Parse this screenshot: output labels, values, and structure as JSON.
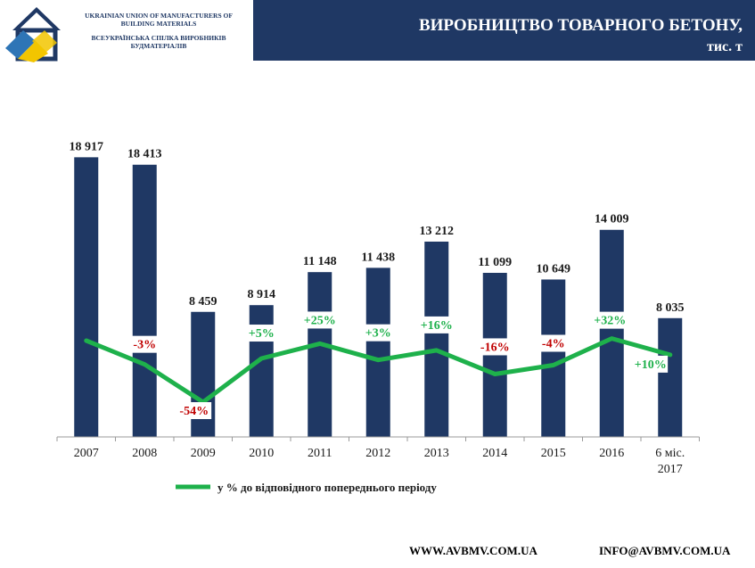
{
  "header": {
    "org_en": "UKRAINIAN UNION OF MANUFACTURERS OF BUILDING MATERIALS",
    "org_ua": "ВСЕУКРАЇНСЬКА СПІЛКА ВИРОБНИКІВ БУДМАТЕРІАЛІВ",
    "title_line1": "ВИРОБНИЦТВО ТОВАРНОГО БЕТОНУ,",
    "title_line2": "тис. т"
  },
  "colors": {
    "banner": "#1f3864",
    "bar": "#1f3864",
    "line": "#1eb14b",
    "negative_label": "#c00000",
    "positive_label": "#1eb14b"
  },
  "chart_data": {
    "type": "bar",
    "categories": [
      "2007",
      "2008",
      "2009",
      "2010",
      "2011",
      "2012",
      "2013",
      "2014",
      "2015",
      "2016",
      "6 міс. 2017"
    ],
    "series": [
      {
        "type": "bar",
        "values": [
          18917,
          18413,
          8459,
          8914,
          11148,
          11438,
          13212,
          11099,
          10649,
          14009,
          8035
        ],
        "labels": [
          "18 917",
          "18 413",
          "8 459",
          "8 914",
          "11 148",
          "11 438",
          "13 212",
          "11 099",
          "10 649",
          "14 009",
          "8 035"
        ]
      },
      {
        "type": "line",
        "name": "у % до відповідного попереднього періоду",
        "values": [
          null,
          -3,
          -54,
          5,
          25,
          3,
          16,
          -16,
          -4,
          32,
          10
        ],
        "labels": [
          "",
          "-3%",
          "-54%",
          "+5%",
          "+25%",
          "+3%",
          "+16%",
          "-16%",
          "-4%",
          "+32%",
          "+10%"
        ]
      }
    ],
    "legend": "bottom"
  },
  "footer": {
    "website": "WWW.AVBMV.COM.UA",
    "email": "INFO@AVBMV.COM.UA"
  }
}
